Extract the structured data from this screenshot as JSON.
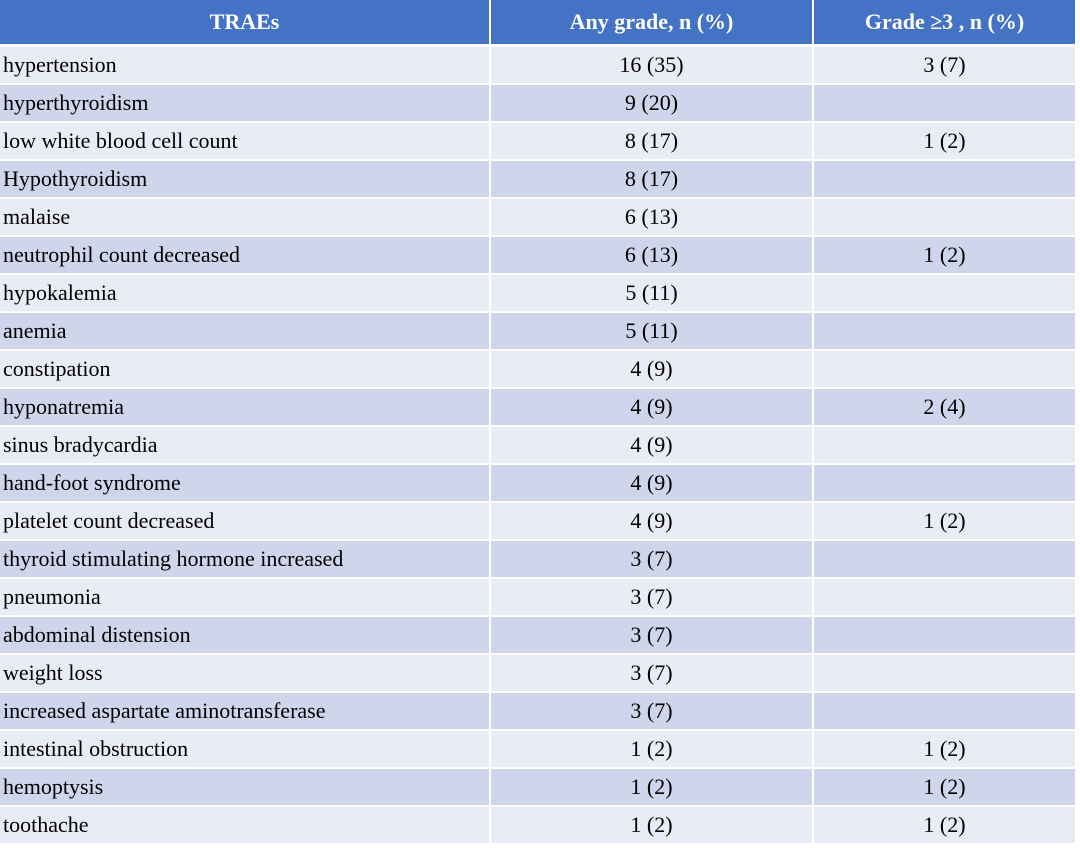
{
  "table": {
    "headers": [
      "TRAEs",
      "Any grade, n (%)",
      "Grade ≥3 , n (%)"
    ],
    "rows": [
      {
        "event": "hypertension",
        "any_grade": "16 (35)",
        "grade3": "3 (7)"
      },
      {
        "event": "hyperthyroidism",
        "any_grade": "9 (20)",
        "grade3": ""
      },
      {
        "event": "low white blood cell count",
        "any_grade": "8 (17)",
        "grade3": "1 (2)"
      },
      {
        "event": "Hypothyroidism",
        "any_grade": "8 (17)",
        "grade3": ""
      },
      {
        "event": "malaise",
        "any_grade": "6 (13)",
        "grade3": ""
      },
      {
        "event": "neutrophil count decreased",
        "any_grade": "6 (13)",
        "grade3": "1 (2)"
      },
      {
        "event": "hypokalemia",
        "any_grade": "5 (11)",
        "grade3": ""
      },
      {
        "event": "anemia",
        "any_grade": "5 (11)",
        "grade3": ""
      },
      {
        "event": "constipation",
        "any_grade": "4 (9)",
        "grade3": ""
      },
      {
        "event": "hyponatremia",
        "any_grade": "4 (9)",
        "grade3": "2 (4)"
      },
      {
        "event": "sinus bradycardia",
        "any_grade": "4 (9)",
        "grade3": ""
      },
      {
        "event": "hand-foot syndrome",
        "any_grade": "4 (9)",
        "grade3": ""
      },
      {
        "event": "platelet count decreased",
        "any_grade": "4 (9)",
        "grade3": "1 (2)"
      },
      {
        "event": "thyroid stimulating hormone increased",
        "any_grade": "3 (7)",
        "grade3": ""
      },
      {
        "event": "pneumonia",
        "any_grade": "3 (7)",
        "grade3": ""
      },
      {
        "event": "abdominal distension",
        "any_grade": "3 (7)",
        "grade3": ""
      },
      {
        "event": "weight loss",
        "any_grade": "3 (7)",
        "grade3": ""
      },
      {
        "event": "increased aspartate aminotransferase",
        "any_grade": "3 (7)",
        "grade3": ""
      },
      {
        "event": "intestinal obstruction",
        "any_grade": "1 (2)",
        "grade3": "1 (2)"
      },
      {
        "event": "hemoptysis",
        "any_grade": "1 (2)",
        "grade3": "1 (2)"
      },
      {
        "event": "toothache",
        "any_grade": "1 (2)",
        "grade3": "1 (2)"
      }
    ]
  },
  "colors": {
    "header_bg": "#4472c4",
    "header_text": "#ffffff",
    "row_light": "#e9ebf5",
    "row_dark": "#cfd5ea"
  }
}
